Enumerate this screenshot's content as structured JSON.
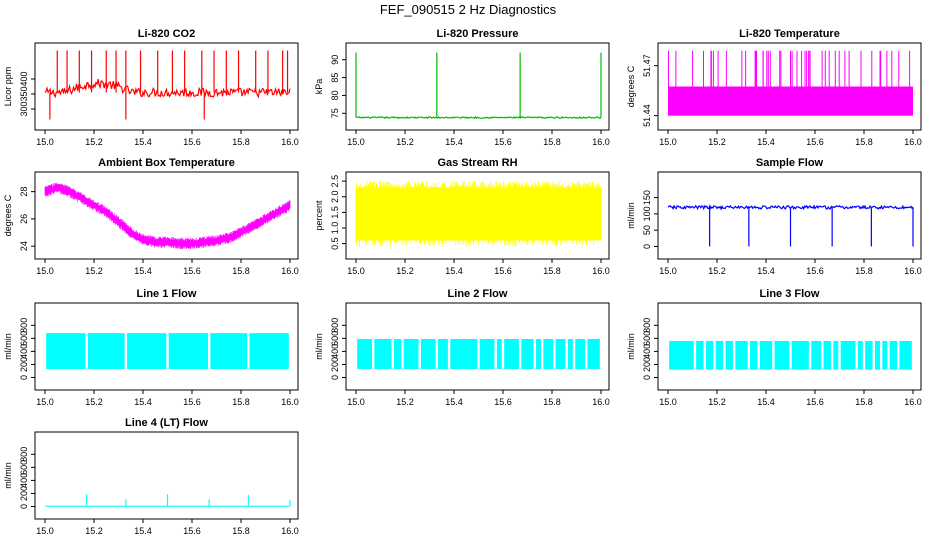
{
  "page": {
    "title": "FEF_090515  2 Hz Diagnostics"
  },
  "colors": {
    "axis": "#000000",
    "background": "#ffffff"
  },
  "chart_data": [
    {
      "type": "line",
      "title": "Li-820 CO2",
      "ylabel": "Licor ppm",
      "color": "#ff0000",
      "xlim": [
        15.0,
        16.0
      ],
      "ylim": [
        250,
        500
      ],
      "x_ticks": [
        "15.0",
        "15.2",
        "15.4",
        "15.6",
        "15.8",
        "16.0"
      ],
      "y_ticks": [
        "300",
        "350",
        "400"
      ],
      "baseline": 355,
      "band": [
        340,
        370
      ],
      "hump": {
        "from": 15.08,
        "to": 15.36,
        "level": 385
      },
      "spikes_up": [
        15.05,
        15.09,
        15.14,
        15.19,
        15.25,
        15.29,
        15.33,
        15.39,
        15.46,
        15.52,
        15.57,
        15.64,
        15.69,
        15.74,
        15.79,
        15.86,
        15.91,
        15.97,
        15.99
      ],
      "spike_up_to": 495,
      "spikes_down": [
        15.02,
        15.33,
        15.65
      ],
      "spike_down_to": 265
    },
    {
      "type": "line",
      "title": "Li-820 Pressure",
      "ylabel": "kPa",
      "color": "#00bb00",
      "xlim": [
        15.0,
        16.0
      ],
      "ylim": [
        72,
        93
      ],
      "x_ticks": [
        "15.0",
        "15.2",
        "15.4",
        "15.6",
        "15.8",
        "16.0"
      ],
      "y_ticks": [
        "75",
        "80",
        "85",
        "90"
      ],
      "baseline": 73.8,
      "band": [
        73.6,
        74.0
      ],
      "spikes_up": [
        15.0,
        15.33,
        15.67,
        16.0
      ],
      "spike_up_to": 92
    },
    {
      "type": "line",
      "title": "Li-820 Temperature",
      "ylabel": "degrees C",
      "color": "#ff00ff",
      "xlim": [
        15.0,
        16.0
      ],
      "ylim": [
        51.435,
        51.48
      ],
      "x_ticks": [
        "15.0",
        "15.2",
        "15.4",
        "15.6",
        "15.8",
        "16.0"
      ],
      "y_ticks": [
        "51.44",
        "51.47"
      ],
      "band": [
        51.44,
        51.4575
      ],
      "spike_count": 48,
      "spike_up_to": 51.479
    },
    {
      "type": "line",
      "title": "Ambient Box Temperature",
      "ylabel": "degrees C",
      "color": "#ff00ff",
      "xlim": [
        15.0,
        16.0
      ],
      "ylim": [
        23.5,
        29
      ],
      "x_ticks": [
        "15.0",
        "15.2",
        "15.4",
        "15.6",
        "15.8",
        "16.0"
      ],
      "y_ticks": [
        "24",
        "26",
        "28"
      ],
      "x": [
        15.0,
        15.05,
        15.1,
        15.15,
        15.2,
        15.25,
        15.3,
        15.35,
        15.4,
        15.45,
        15.5,
        15.55,
        15.6,
        15.65,
        15.7,
        15.75,
        15.8,
        15.85,
        15.9,
        15.95,
        16.0
      ],
      "values": [
        28.0,
        28.3,
        28.0,
        27.5,
        27.0,
        26.5,
        25.8,
        25.0,
        24.5,
        24.3,
        24.3,
        24.2,
        24.2,
        24.3,
        24.4,
        24.6,
        25.0,
        25.5,
        26.0,
        26.5,
        27.0
      ],
      "noise": 0.6
    },
    {
      "type": "line",
      "title": "Gas Stream RH",
      "ylabel": "percent",
      "color": "#ffff00",
      "xlim": [
        15.0,
        16.0
      ],
      "ylim": [
        0.2,
        2.6
      ],
      "x_ticks": [
        "15.0",
        "15.2",
        "15.4",
        "15.6",
        "15.8",
        "16.0"
      ],
      "y_ticks": [
        "0.5",
        "1.0",
        "1.5",
        "2.0",
        "2.5"
      ],
      "band": [
        0.4,
        2.5
      ],
      "dense_low": [
        0.6,
        1.9
      ]
    },
    {
      "type": "line",
      "title": "Sample Flow",
      "ylabel": "ml/min",
      "color": "#0000ff",
      "xlim": [
        15.0,
        16.0
      ],
      "ylim": [
        -20,
        210
      ],
      "x_ticks": [
        "15.0",
        "15.2",
        "15.4",
        "15.6",
        "15.8",
        "16.0"
      ],
      "y_ticks": [
        "0",
        "50",
        "100",
        "150"
      ],
      "baseline": 120,
      "band": [
        115,
        125
      ],
      "spikes_down": [
        15.17,
        15.33,
        15.5,
        15.67,
        15.83,
        16.0
      ],
      "spike_down_to": 0
    },
    {
      "type": "line",
      "title": "Line 1 Flow",
      "ylabel": "ml/min",
      "color": "#00ffff",
      "xlim": [
        15.0,
        16.0
      ],
      "ylim": [
        -100,
        1050
      ],
      "x_ticks": [
        "15.0",
        "15.2",
        "15.4",
        "15.6",
        "15.8",
        "16.0"
      ],
      "y_ticks": [
        "0",
        "200",
        "400",
        "600",
        "800"
      ],
      "band": [
        130,
        680
      ],
      "gaps": [
        15.17,
        15.33,
        15.5,
        15.67,
        15.83,
        16.0
      ]
    },
    {
      "type": "line",
      "title": "Line 2 Flow",
      "ylabel": "ml/min",
      "color": "#00ffff",
      "xlim": [
        15.0,
        16.0
      ],
      "ylim": [
        -100,
        1050
      ],
      "x_ticks": [
        "15.0",
        "15.2",
        "15.4",
        "15.6",
        "15.8",
        "16.0"
      ],
      "y_ticks": [
        "0",
        "200",
        "400",
        "600",
        "800"
      ],
      "band": [
        130,
        590
      ],
      "gaps": [
        15.07,
        15.15,
        15.19,
        15.26,
        15.33,
        15.38,
        15.5,
        15.57,
        15.6,
        15.67,
        15.73,
        15.76,
        15.81,
        15.86,
        15.89,
        15.94
      ]
    },
    {
      "type": "line",
      "title": "Line 3 Flow",
      "ylabel": "ml/min",
      "color": "#00ffff",
      "xlim": [
        15.0,
        16.0
      ],
      "ylim": [
        -100,
        1050
      ],
      "x_ticks": [
        "15.0",
        "15.2",
        "15.4",
        "15.6",
        "15.8",
        "16.0"
      ],
      "y_ticks": [
        "0",
        "200",
        "400",
        "600",
        "800"
      ],
      "band": [
        120,
        560
      ],
      "gaps": [
        15.11,
        15.15,
        15.19,
        15.23,
        15.27,
        15.33,
        15.37,
        15.43,
        15.5,
        15.58,
        15.63,
        15.67,
        15.7,
        15.77,
        15.8,
        15.84,
        15.87,
        15.9,
        15.94,
        16.0
      ]
    },
    {
      "type": "line",
      "title": "Line 4 (LT) Flow",
      "ylabel": "ml/min",
      "color": "#00ffff",
      "xlim": [
        15.0,
        16.0
      ],
      "ylim": [
        -100,
        1050
      ],
      "x_ticks": [
        "15.0",
        "15.2",
        "15.4",
        "15.6",
        "15.8",
        "16.0"
      ],
      "y_ticks": [
        "0",
        "200",
        "400",
        "600",
        "800"
      ],
      "baseline": 5,
      "spikes_up": [
        15.17,
        15.33,
        15.5,
        15.67,
        15.83,
        16.0
      ],
      "spike_heights": [
        190,
        110,
        190,
        110,
        180,
        100
      ]
    }
  ]
}
